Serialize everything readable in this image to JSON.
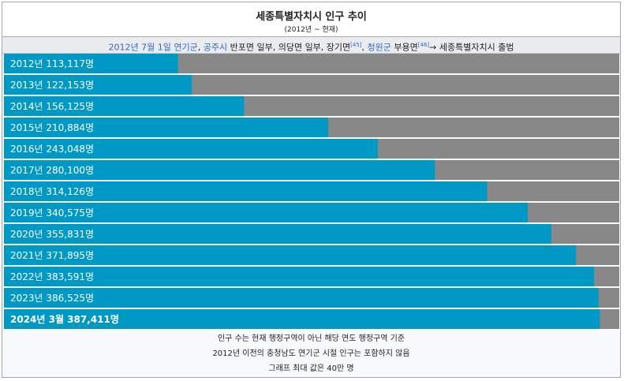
{
  "header": {
    "title": "세종특별자치시 인구 추이",
    "subtitle": "(2012년 ~ 현재)"
  },
  "history": {
    "part1": "2012년 7월 1일 연기군",
    "sep1": ", ",
    "part2": "공주시",
    "part3": " 반포면 일부, 의당면 일부, 장기면",
    "ref1": "[45]",
    "sep2": ", ",
    "part4": "청원군",
    "part5": " 부용면",
    "ref2": "[46]",
    "part6": "→ 세종특별자치시 출범"
  },
  "chart_data": {
    "type": "bar",
    "orientation": "horizontal",
    "xlim": [
      0,
      400000
    ],
    "colors": {
      "bar": "#0099c6",
      "track": "#888888",
      "text": "#ffffff"
    },
    "categories": [
      "2012년",
      "2013년",
      "2014년",
      "2015년",
      "2016년",
      "2017년",
      "2018년",
      "2019년",
      "2020년",
      "2021년",
      "2022년",
      "2023년",
      "2024년 3월"
    ],
    "labels": [
      "2012년 113,117명",
      "2013년 122,153명",
      "2014년 156,125명",
      "2015년 210,884명",
      "2016년 243,048명",
      "2017년 280,100명",
      "2018년 314,126명",
      "2019년 340,575명",
      "2020년 355,831명",
      "2021년 371,895명",
      "2022년 383,591명",
      "2023년 386,525명",
      "2024년 3월 387,411명"
    ],
    "values": [
      113117,
      122153,
      156125,
      210884,
      243048,
      280100,
      314126,
      340575,
      355831,
      371895,
      383591,
      386525,
      387411
    ],
    "bold_last": true
  },
  "notes": [
    "인구 수는 현재 행정구역이 아닌 해당 연도 행정구역 기준",
    "2012년 이전의 충청남도 연기군 시절 인구는 포함하지 않음",
    "그래프 최대 값은 40만 명"
  ]
}
